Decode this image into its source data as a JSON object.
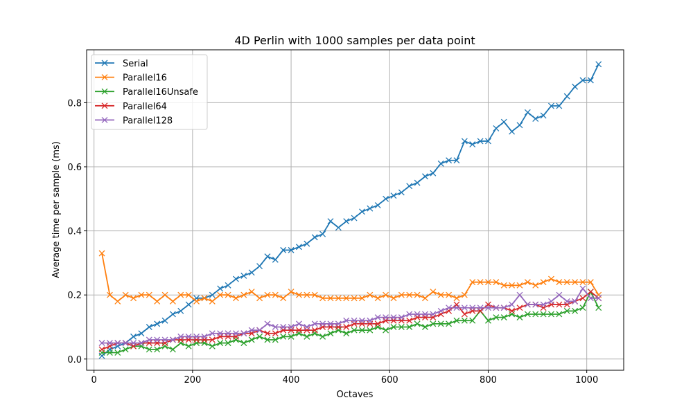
{
  "chart_data": {
    "type": "line",
    "title": "4D Perlin with 1000 samples per data point",
    "xlabel": "Octaves",
    "ylabel": "Average time per sample (ms)",
    "xlim": [
      -15,
      1075
    ],
    "ylim": [
      -0.035,
      0.965
    ],
    "xticks": [
      0,
      200,
      400,
      600,
      800,
      1000
    ],
    "xtick_labels": [
      "0",
      "200",
      "400",
      "600",
      "800",
      "1000"
    ],
    "yticks": [
      0.0,
      0.2,
      0.4,
      0.6,
      0.8
    ],
    "ytick_labels": [
      "0.0",
      "0.2",
      "0.4",
      "0.6",
      "0.8"
    ],
    "grid": true,
    "legend_position": "top-left",
    "marker": "x",
    "x_start": 16,
    "x_step": 16,
    "series": [
      {
        "name": "Serial",
        "color": "#1f77b4",
        "values": [
          0.01,
          0.03,
          0.04,
          0.05,
          0.07,
          0.08,
          0.1,
          0.11,
          0.12,
          0.14,
          0.15,
          0.17,
          0.19,
          0.19,
          0.2,
          0.22,
          0.23,
          0.25,
          0.26,
          0.27,
          0.29,
          0.32,
          0.31,
          0.34,
          0.34,
          0.35,
          0.36,
          0.38,
          0.39,
          0.43,
          0.41,
          0.43,
          0.44,
          0.46,
          0.47,
          0.48,
          0.5,
          0.51,
          0.52,
          0.54,
          0.55,
          0.57,
          0.58,
          0.61,
          0.62,
          0.62,
          0.68,
          0.67,
          0.68,
          0.68,
          0.72,
          0.74,
          0.71,
          0.73,
          0.77,
          0.75,
          0.76,
          0.79,
          0.79,
          0.82,
          0.85,
          0.87,
          0.87,
          0.92
        ]
      },
      {
        "name": "Parallel16",
        "color": "#ff7f0e",
        "values": [
          0.33,
          0.2,
          0.18,
          0.2,
          0.19,
          0.2,
          0.2,
          0.18,
          0.2,
          0.18,
          0.2,
          0.2,
          0.18,
          0.19,
          0.18,
          0.2,
          0.2,
          0.19,
          0.2,
          0.21,
          0.19,
          0.2,
          0.2,
          0.19,
          0.21,
          0.2,
          0.2,
          0.2,
          0.19,
          0.19,
          0.19,
          0.19,
          0.19,
          0.19,
          0.2,
          0.19,
          0.2,
          0.19,
          0.2,
          0.2,
          0.2,
          0.19,
          0.21,
          0.2,
          0.2,
          0.19,
          0.2,
          0.24,
          0.24,
          0.24,
          0.24,
          0.23,
          0.23,
          0.23,
          0.24,
          0.23,
          0.24,
          0.25,
          0.24,
          0.24,
          0.24,
          0.24,
          0.24,
          0.2
        ]
      },
      {
        "name": "Parallel16Unsafe",
        "color": "#2ca02c",
        "values": [
          0.02,
          0.02,
          0.02,
          0.03,
          0.04,
          0.04,
          0.03,
          0.03,
          0.04,
          0.03,
          0.05,
          0.04,
          0.05,
          0.05,
          0.04,
          0.05,
          0.05,
          0.06,
          0.05,
          0.06,
          0.07,
          0.06,
          0.06,
          0.07,
          0.07,
          0.08,
          0.07,
          0.08,
          0.07,
          0.08,
          0.09,
          0.08,
          0.09,
          0.09,
          0.09,
          0.1,
          0.09,
          0.1,
          0.1,
          0.1,
          0.11,
          0.1,
          0.11,
          0.11,
          0.11,
          0.12,
          0.12,
          0.12,
          0.15,
          0.12,
          0.13,
          0.13,
          0.14,
          0.13,
          0.14,
          0.14,
          0.14,
          0.14,
          0.14,
          0.15,
          0.15,
          0.16,
          0.21,
          0.16
        ]
      },
      {
        "name": "Parallel64",
        "color": "#d62728",
        "values": [
          0.03,
          0.04,
          0.05,
          0.05,
          0.04,
          0.05,
          0.05,
          0.05,
          0.05,
          0.06,
          0.06,
          0.06,
          0.06,
          0.06,
          0.06,
          0.07,
          0.07,
          0.07,
          0.08,
          0.08,
          0.09,
          0.08,
          0.08,
          0.09,
          0.09,
          0.09,
          0.09,
          0.09,
          0.1,
          0.1,
          0.1,
          0.1,
          0.11,
          0.11,
          0.11,
          0.11,
          0.12,
          0.12,
          0.12,
          0.12,
          0.13,
          0.13,
          0.13,
          0.14,
          0.15,
          0.17,
          0.14,
          0.15,
          0.15,
          0.17,
          0.16,
          0.16,
          0.15,
          0.16,
          0.17,
          0.17,
          0.16,
          0.17,
          0.17,
          0.17,
          0.18,
          0.19,
          0.21,
          0.19
        ]
      },
      {
        "name": "Parallel128",
        "color": "#9467bd",
        "values": [
          0.05,
          0.05,
          0.05,
          0.05,
          0.05,
          0.05,
          0.06,
          0.06,
          0.06,
          0.06,
          0.07,
          0.07,
          0.07,
          0.07,
          0.08,
          0.08,
          0.08,
          0.08,
          0.08,
          0.09,
          0.09,
          0.11,
          0.1,
          0.1,
          0.1,
          0.11,
          0.1,
          0.11,
          0.11,
          0.11,
          0.11,
          0.12,
          0.12,
          0.12,
          0.12,
          0.13,
          0.13,
          0.13,
          0.13,
          0.14,
          0.14,
          0.14,
          0.14,
          0.15,
          0.16,
          0.16,
          0.16,
          0.16,
          0.16,
          0.16,
          0.16,
          0.16,
          0.17,
          0.2,
          0.17,
          0.17,
          0.17,
          0.18,
          0.2,
          0.18,
          0.18,
          0.22,
          0.19,
          0.19
        ]
      }
    ]
  }
}
